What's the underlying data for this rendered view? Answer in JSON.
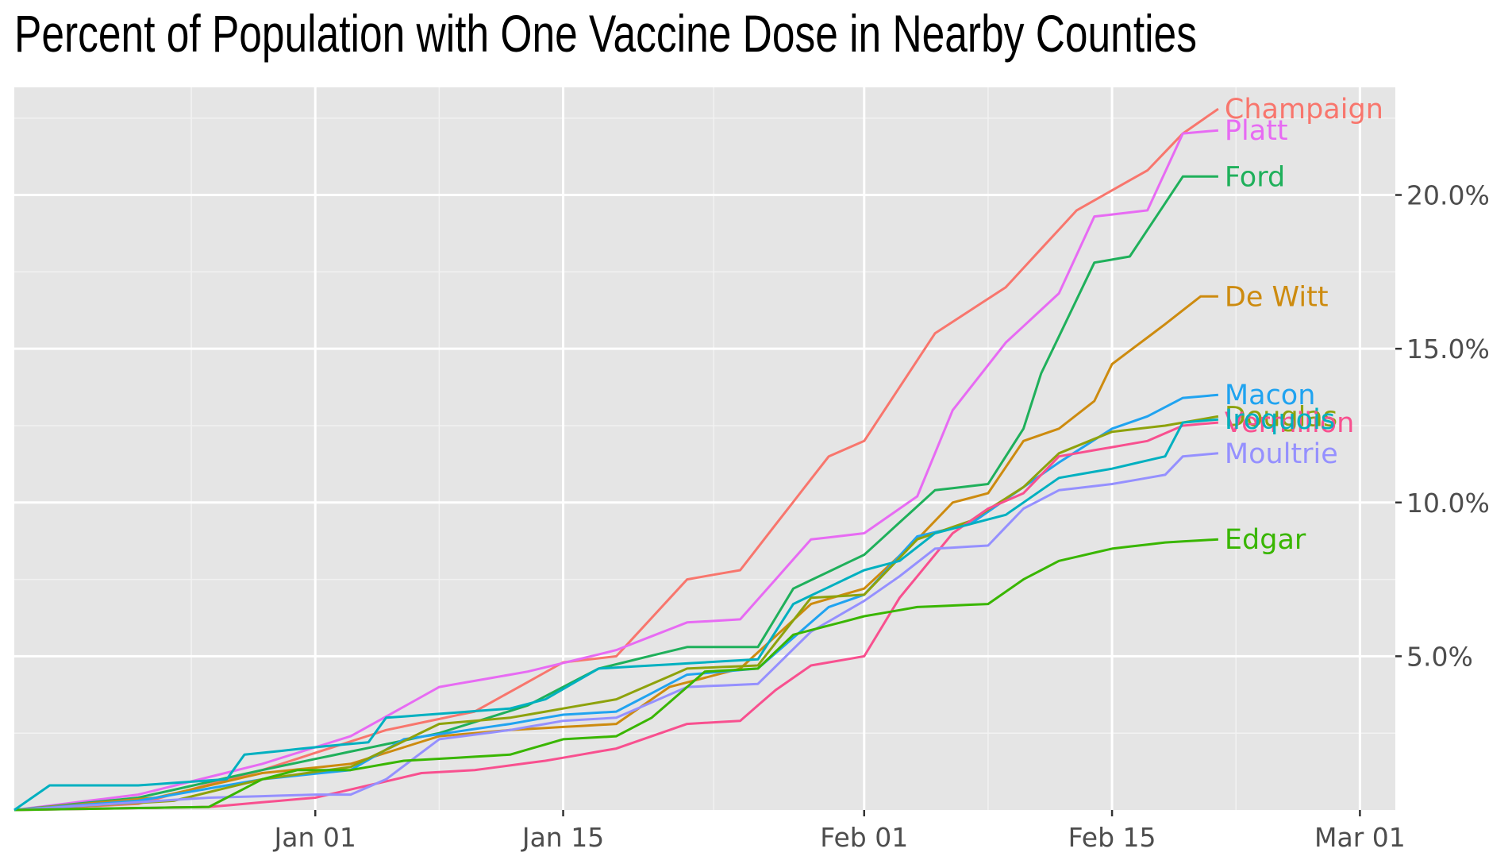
{
  "chart_data": {
    "type": "line",
    "title": "Percent of Population with One Vaccine Dose in Nearby Counties",
    "xlabel": "",
    "ylabel": "",
    "xlim": [
      "2020-12-15",
      "2021-03-03"
    ],
    "ylim": [
      0,
      23.5
    ],
    "x_ticks": [
      {
        "date": "2021-01-01",
        "label": "Jan 01"
      },
      {
        "date": "2021-01-15",
        "label": "Jan 15"
      },
      {
        "date": "2021-02-01",
        "label": "Feb 01"
      },
      {
        "date": "2021-02-15",
        "label": "Feb 15"
      },
      {
        "date": "2021-03-01",
        "label": "Mar 01"
      }
    ],
    "y_ticks": [
      {
        "value": 5,
        "label": "5.0%"
      },
      {
        "value": 10,
        "label": "10.0%"
      },
      {
        "value": 15,
        "label": "15.0%"
      },
      {
        "value": 20,
        "label": "20.0%"
      }
    ],
    "y_axis_position": "right",
    "grid": true,
    "legend": "none (direct labels at line ends)",
    "background": "#e5e5e5",
    "series": [
      {
        "name": "Champaign",
        "color": "#F8766D",
        "points": [
          [
            "2020-12-15",
            0.0
          ],
          [
            "2020-12-22",
            0.2
          ],
          [
            "2020-12-29",
            1.3
          ],
          [
            "2021-01-05",
            2.6
          ],
          [
            "2021-01-10",
            3.2
          ],
          [
            "2021-01-15",
            4.8
          ],
          [
            "2021-01-18",
            5.0
          ],
          [
            "2021-01-22",
            7.5
          ],
          [
            "2021-01-25",
            7.8
          ],
          [
            "2021-01-30",
            11.5
          ],
          [
            "2021-02-01",
            12.0
          ],
          [
            "2021-02-05",
            15.5
          ],
          [
            "2021-02-09",
            17.0
          ],
          [
            "2021-02-13",
            19.5
          ],
          [
            "2021-02-17",
            20.8
          ],
          [
            "2021-02-19",
            22.0
          ],
          [
            "2021-02-21",
            22.8
          ]
        ]
      },
      {
        "name": "Platt",
        "color": "#E76BF3",
        "points": [
          [
            "2020-12-15",
            0.0
          ],
          [
            "2020-12-22",
            0.5
          ],
          [
            "2020-12-29",
            1.5
          ],
          [
            "2021-01-03",
            2.4
          ],
          [
            "2021-01-08",
            4.0
          ],
          [
            "2021-01-13",
            4.5
          ],
          [
            "2021-01-18",
            5.2
          ],
          [
            "2021-01-22",
            6.1
          ],
          [
            "2021-01-25",
            6.2
          ],
          [
            "2021-01-29",
            8.8
          ],
          [
            "2021-02-01",
            9.0
          ],
          [
            "2021-02-04",
            10.2
          ],
          [
            "2021-02-06",
            13.0
          ],
          [
            "2021-02-09",
            15.2
          ],
          [
            "2021-02-12",
            16.8
          ],
          [
            "2021-02-14",
            19.3
          ],
          [
            "2021-02-17",
            19.5
          ],
          [
            "2021-02-19",
            22.0
          ],
          [
            "2021-02-21",
            22.1
          ]
        ]
      },
      {
        "name": "Ford",
        "color": "#1FB05B",
        "points": [
          [
            "2020-12-15",
            0.0
          ],
          [
            "2020-12-22",
            0.4
          ],
          [
            "2020-12-29",
            1.3
          ],
          [
            "2021-01-03",
            1.9
          ],
          [
            "2021-01-08",
            2.5
          ],
          [
            "2021-01-13",
            3.4
          ],
          [
            "2021-01-17",
            4.6
          ],
          [
            "2021-01-22",
            5.3
          ],
          [
            "2021-01-26",
            5.3
          ],
          [
            "2021-01-28",
            7.2
          ],
          [
            "2021-02-01",
            8.3
          ],
          [
            "2021-02-05",
            10.4
          ],
          [
            "2021-02-08",
            10.6
          ],
          [
            "2021-02-10",
            12.4
          ],
          [
            "2021-02-11",
            14.2
          ],
          [
            "2021-02-14",
            17.8
          ],
          [
            "2021-02-16",
            18.0
          ],
          [
            "2021-02-19",
            20.6
          ],
          [
            "2021-02-21",
            20.6
          ]
        ]
      },
      {
        "name": "De Witt",
        "color": "#CD8B0F",
        "points": [
          [
            "2020-12-15",
            0.0
          ],
          [
            "2020-12-23",
            0.4
          ],
          [
            "2020-12-29",
            1.2
          ],
          [
            "2021-01-03",
            1.5
          ],
          [
            "2021-01-08",
            2.4
          ],
          [
            "2021-01-12",
            2.6
          ],
          [
            "2021-01-15",
            2.7
          ],
          [
            "2021-01-18",
            2.8
          ],
          [
            "2021-01-21",
            4.0
          ],
          [
            "2021-01-25",
            4.6
          ],
          [
            "2021-01-29",
            6.7
          ],
          [
            "2021-02-01",
            7.2
          ],
          [
            "2021-02-04",
            8.8
          ],
          [
            "2021-02-06",
            10.0
          ],
          [
            "2021-02-08",
            10.3
          ],
          [
            "2021-02-10",
            12.0
          ],
          [
            "2021-02-12",
            12.4
          ],
          [
            "2021-02-14",
            13.3
          ],
          [
            "2021-02-15",
            14.5
          ],
          [
            "2021-02-18",
            15.8
          ],
          [
            "2021-02-20",
            16.7
          ],
          [
            "2021-02-21",
            16.7
          ]
        ]
      },
      {
        "name": "Macon",
        "color": "#20A3F0",
        "points": [
          [
            "2020-12-15",
            0.0
          ],
          [
            "2020-12-22",
            0.3
          ],
          [
            "2020-12-29",
            1.0
          ],
          [
            "2021-01-03",
            1.3
          ],
          [
            "2021-01-06",
            2.3
          ],
          [
            "2021-01-12",
            2.8
          ],
          [
            "2021-01-15",
            3.1
          ],
          [
            "2021-01-18",
            3.2
          ],
          [
            "2021-01-22",
            4.4
          ],
          [
            "2021-01-26",
            4.6
          ],
          [
            "2021-01-30",
            6.6
          ],
          [
            "2021-02-01",
            7.0
          ],
          [
            "2021-02-04",
            8.9
          ],
          [
            "2021-02-07",
            9.3
          ],
          [
            "2021-02-10",
            10.5
          ],
          [
            "2021-02-12",
            11.3
          ],
          [
            "2021-02-15",
            12.4
          ],
          [
            "2021-02-17",
            12.8
          ],
          [
            "2021-02-19",
            13.4
          ],
          [
            "2021-02-21",
            13.5
          ]
        ]
      },
      {
        "name": "Douglas",
        "color": "#8EA20C",
        "points": [
          [
            "2020-12-15",
            0.0
          ],
          [
            "2020-12-24",
            0.3
          ],
          [
            "2020-12-29",
            1.0
          ],
          [
            "2021-01-03",
            1.4
          ],
          [
            "2021-01-08",
            2.8
          ],
          [
            "2021-01-12",
            3.0
          ],
          [
            "2021-01-15",
            3.3
          ],
          [
            "2021-01-18",
            3.6
          ],
          [
            "2021-01-22",
            4.6
          ],
          [
            "2021-01-26",
            4.7
          ],
          [
            "2021-01-29",
            6.9
          ],
          [
            "2021-02-01",
            7.0
          ],
          [
            "2021-02-04",
            8.8
          ],
          [
            "2021-02-07",
            9.4
          ],
          [
            "2021-02-10",
            10.5
          ],
          [
            "2021-02-12",
            11.6
          ],
          [
            "2021-02-15",
            12.3
          ],
          [
            "2021-02-18",
            12.5
          ],
          [
            "2021-02-21",
            12.8
          ]
        ]
      },
      {
        "name": "Vermilion",
        "color": "#F8508F",
        "points": [
          [
            "2020-12-15",
            0.0
          ],
          [
            "2020-12-26",
            0.1
          ],
          [
            "2021-01-01",
            0.4
          ],
          [
            "2021-01-04",
            0.8
          ],
          [
            "2021-01-07",
            1.2
          ],
          [
            "2021-01-10",
            1.3
          ],
          [
            "2021-01-14",
            1.6
          ],
          [
            "2021-01-18",
            2.0
          ],
          [
            "2021-01-22",
            2.8
          ],
          [
            "2021-01-25",
            2.9
          ],
          [
            "2021-01-27",
            3.9
          ],
          [
            "2021-01-29",
            4.7
          ],
          [
            "2021-02-01",
            5.0
          ],
          [
            "2021-02-03",
            6.9
          ],
          [
            "2021-02-06",
            9.0
          ],
          [
            "2021-02-08",
            9.8
          ],
          [
            "2021-02-10",
            10.3
          ],
          [
            "2021-02-12",
            11.5
          ],
          [
            "2021-02-15",
            11.8
          ],
          [
            "2021-02-17",
            12.0
          ],
          [
            "2021-02-19",
            12.5
          ],
          [
            "2021-02-21",
            12.6
          ]
        ]
      },
      {
        "name": "Moultrie",
        "color": "#9590FF",
        "points": [
          [
            "2020-12-15",
            0.0
          ],
          [
            "2020-12-26",
            0.4
          ],
          [
            "2021-01-01",
            0.5
          ],
          [
            "2021-01-03",
            0.5
          ],
          [
            "2021-01-05",
            1.0
          ],
          [
            "2021-01-08",
            2.3
          ],
          [
            "2021-01-12",
            2.6
          ],
          [
            "2021-01-15",
            2.9
          ],
          [
            "2021-01-18",
            3.0
          ],
          [
            "2021-01-22",
            4.0
          ],
          [
            "2021-01-26",
            4.1
          ],
          [
            "2021-01-29",
            5.8
          ],
          [
            "2021-02-01",
            6.8
          ],
          [
            "2021-02-03",
            7.6
          ],
          [
            "2021-02-05",
            8.5
          ],
          [
            "2021-02-08",
            8.6
          ],
          [
            "2021-02-10",
            9.8
          ],
          [
            "2021-02-12",
            10.4
          ],
          [
            "2021-02-15",
            10.6
          ],
          [
            "2021-02-18",
            10.9
          ],
          [
            "2021-02-19",
            11.5
          ],
          [
            "2021-02-21",
            11.6
          ]
        ]
      },
      {
        "name": "Edgar",
        "color": "#39B600",
        "points": [
          [
            "2020-12-15",
            0.0
          ],
          [
            "2020-12-26",
            0.1
          ],
          [
            "2020-12-29",
            1.0
          ],
          [
            "2020-12-31",
            1.3
          ],
          [
            "2021-01-03",
            1.3
          ],
          [
            "2021-01-06",
            1.6
          ],
          [
            "2021-01-12",
            1.8
          ],
          [
            "2021-01-15",
            2.3
          ],
          [
            "2021-01-18",
            2.4
          ],
          [
            "2021-01-20",
            3.0
          ],
          [
            "2021-01-23",
            4.5
          ],
          [
            "2021-01-26",
            4.6
          ],
          [
            "2021-01-28",
            5.7
          ],
          [
            "2021-02-01",
            6.3
          ],
          [
            "2021-02-04",
            6.6
          ],
          [
            "2021-02-08",
            6.7
          ],
          [
            "2021-02-10",
            7.5
          ],
          [
            "2021-02-12",
            8.1
          ],
          [
            "2021-02-15",
            8.5
          ],
          [
            "2021-02-18",
            8.7
          ],
          [
            "2021-02-21",
            8.8
          ]
        ]
      },
      {
        "name": "Iroquois",
        "color": "#00B0C0",
        "points": [
          [
            "2020-12-15",
            0.0
          ],
          [
            "2020-12-17",
            0.8
          ],
          [
            "2020-12-22",
            0.8
          ],
          [
            "2020-12-27",
            1.0
          ],
          [
            "2020-12-28",
            1.8
          ],
          [
            "2021-01-02",
            2.1
          ],
          [
            "2021-01-04",
            2.2
          ],
          [
            "2021-01-05",
            3.0
          ],
          [
            "2021-01-12",
            3.3
          ],
          [
            "2021-01-14",
            3.6
          ],
          [
            "2021-01-17",
            4.6
          ],
          [
            "2021-01-20",
            4.7
          ],
          [
            "2021-01-26",
            4.9
          ],
          [
            "2021-01-28",
            6.7
          ],
          [
            "2021-02-01",
            7.8
          ],
          [
            "2021-02-03",
            8.1
          ],
          [
            "2021-02-05",
            9.0
          ],
          [
            "2021-02-09",
            9.6
          ],
          [
            "2021-02-12",
            10.8
          ],
          [
            "2021-02-15",
            11.1
          ],
          [
            "2021-02-18",
            11.5
          ],
          [
            "2021-02-19",
            12.6
          ],
          [
            "2021-02-21",
            12.7
          ]
        ]
      }
    ]
  }
}
